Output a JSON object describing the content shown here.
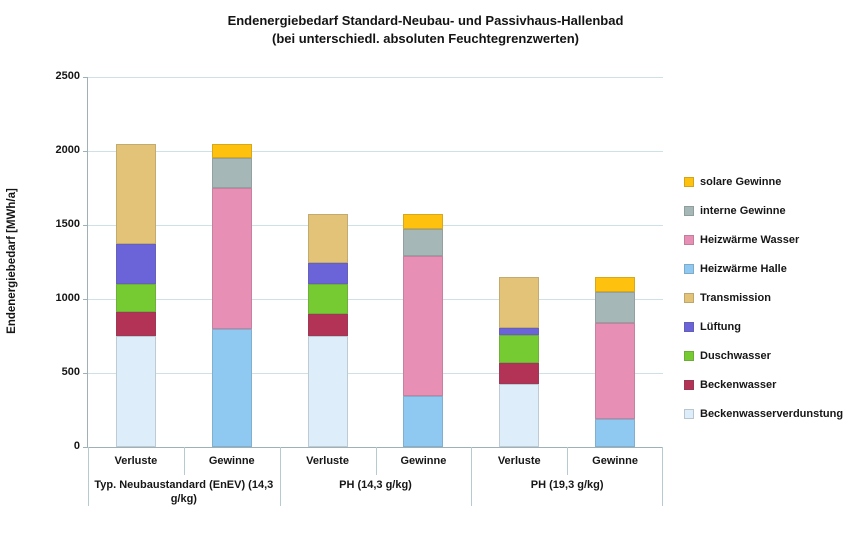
{
  "title": {
    "line1": "Endenergiebedarf Standard-Neubau- und  Passivhaus-Hallenbad",
    "line2": "(bei unterschiedl. absoluten Feuchtegrenzwerten)"
  },
  "y_axis": {
    "label": "Endenergiebedarf  [MWh/a]"
  },
  "chart_data": {
    "type": "bar",
    "stacked": true,
    "title": "Endenergiebedarf Standard-Neubau- und Passivhaus-Hallenbad (bei unterschiedl. absoluten Feuchtegrenzwerten)",
    "ylabel": "Endenergiebedarf [MWh/a]",
    "unit": "MWh/a",
    "ylim": [
      0,
      2500
    ],
    "y_ticks": [
      0,
      500,
      1000,
      1500,
      2000,
      2500
    ],
    "grid": true,
    "legend_position": "right",
    "series": [
      {
        "name": "solare Gewinne",
        "color": "#fec10d",
        "pattern": "solid"
      },
      {
        "name": "interne Gewinne",
        "color": "#a6b7b7",
        "pattern": "solid"
      },
      {
        "name": "Heizwärme Wasser",
        "color": "#e78fb4",
        "pattern": "solid"
      },
      {
        "name": "Heizwärme Halle",
        "color": "#8fc9f1",
        "pattern": "solid"
      },
      {
        "name": "Transmission",
        "color": "#e3c377",
        "pattern": "crosshatch"
      },
      {
        "name": "Lüftung",
        "color": "#6b64d9",
        "pattern": "solid"
      },
      {
        "name": "Duschwasser",
        "color": "#77cb32",
        "pattern": "solid"
      },
      {
        "name": "Beckenwasser",
        "color": "#b23356",
        "pattern": "solid"
      },
      {
        "name": "Beckenwasserverdunstung",
        "color": "#ddeefa",
        "pattern": "speckle"
      }
    ],
    "groups": [
      {
        "label": "Typ. Neubaustandard (EnEV) (14,3 g/kg)",
        "bars": [
          {
            "label": "Verluste",
            "total": 2050,
            "segments": [
              {
                "series": "Beckenwasserverdunstung",
                "value": 750
              },
              {
                "series": "Beckenwasser",
                "value": 160
              },
              {
                "series": "Duschwasser",
                "value": 190
              },
              {
                "series": "Lüftung",
                "value": 270
              },
              {
                "series": "Transmission",
                "value": 680
              }
            ]
          },
          {
            "label": "Gewinne",
            "total": 2050,
            "segments": [
              {
                "series": "Heizwärme Halle",
                "value": 800
              },
              {
                "series": "Heizwärme Wasser",
                "value": 950
              },
              {
                "series": "interne Gewinne",
                "value": 200
              },
              {
                "series": "solare Gewinne",
                "value": 100
              }
            ]
          }
        ]
      },
      {
        "label": "PH (14,3 g/kg)",
        "bars": [
          {
            "label": "Verluste",
            "total": 1575,
            "segments": [
              {
                "series": "Beckenwasserverdunstung",
                "value": 750
              },
              {
                "series": "Beckenwasser",
                "value": 150
              },
              {
                "series": "Duschwasser",
                "value": 200
              },
              {
                "series": "Lüftung",
                "value": 140
              },
              {
                "series": "Transmission",
                "value": 335
              }
            ]
          },
          {
            "label": "Gewinne",
            "total": 1575,
            "segments": [
              {
                "series": "Heizwärme Halle",
                "value": 345
              },
              {
                "series": "Heizwärme Wasser",
                "value": 945
              },
              {
                "series": "interne Gewinne",
                "value": 185
              },
              {
                "series": "solare Gewinne",
                "value": 100
              }
            ]
          }
        ]
      },
      {
        "label": "PH (19,3 g/kg)",
        "bars": [
          {
            "label": "Verluste",
            "total": 1150,
            "segments": [
              {
                "series": "Beckenwasserverdunstung",
                "value": 425
              },
              {
                "series": "Beckenwasser",
                "value": 145
              },
              {
                "series": "Duschwasser",
                "value": 190
              },
              {
                "series": "Lüftung",
                "value": 45
              },
              {
                "series": "Transmission",
                "value": 345
              }
            ]
          },
          {
            "label": "Gewinne",
            "total": 1150,
            "segments": [
              {
                "series": "Heizwärme Halle",
                "value": 190
              },
              {
                "series": "Heizwärme Wasser",
                "value": 650
              },
              {
                "series": "interne Gewinne",
                "value": 205
              },
              {
                "series": "solare Gewinne",
                "value": 105
              }
            ]
          }
        ]
      }
    ]
  }
}
